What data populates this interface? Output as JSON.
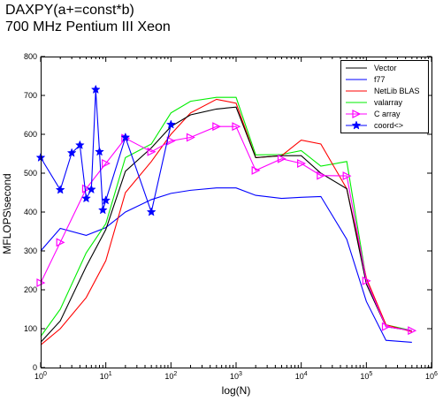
{
  "chart_data": {
    "type": "line",
    "title": "DAXPY(a+=const*b)",
    "subtitle": "700 MHz Pentium III Xeon",
    "xlabel": "log(N)",
    "ylabel": "MFLOPS\\second",
    "xscale": "log",
    "xlim": [
      1,
      1000000
    ],
    "ylim": [
      0,
      800
    ],
    "x_ticks": [
      {
        "value": 1,
        "base": "10",
        "exp": "0"
      },
      {
        "value": 10,
        "base": "10",
        "exp": "1"
      },
      {
        "value": 100,
        "base": "10",
        "exp": "2"
      },
      {
        "value": 1000,
        "base": "10",
        "exp": "3"
      },
      {
        "value": 10000,
        "base": "10",
        "exp": "4"
      },
      {
        "value": 100000,
        "base": "10",
        "exp": "5"
      },
      {
        "value": 1000000,
        "base": "10",
        "exp": "6"
      }
    ],
    "y_ticks": [
      "0",
      "100",
      "200",
      "300",
      "400",
      "500",
      "600",
      "700",
      "800"
    ],
    "grid": false,
    "legend_position": "top-right",
    "series": [
      {
        "name": "Vector",
        "color": "#000000",
        "marker": "none",
        "x": [
          1,
          2,
          5,
          10,
          20,
          50,
          100,
          200,
          500,
          1000,
          2000,
          5000,
          10000,
          20000,
          50000,
          100000,
          200000,
          500000
        ],
        "y": [
          65,
          120,
          260,
          355,
          505,
          565,
          620,
          650,
          665,
          670,
          540,
          545,
          545,
          500,
          460,
          215,
          105,
          95
        ]
      },
      {
        "name": "f77",
        "color": "#0000ff",
        "marker": "none",
        "x": [
          1,
          2,
          5,
          10,
          20,
          50,
          100,
          200,
          500,
          1000,
          2000,
          5000,
          10000,
          20000,
          50000,
          100000,
          200000,
          500000
        ],
        "y": [
          300,
          358,
          340,
          360,
          400,
          432,
          448,
          456,
          462,
          462,
          443,
          435,
          438,
          440,
          330,
          170,
          70,
          65
        ]
      },
      {
        "name": "NetLib BLAS",
        "color": "#ff0000",
        "marker": "none",
        "x": [
          1,
          2,
          5,
          10,
          20,
          50,
          100,
          200,
          500,
          1000,
          2000,
          5000,
          10000,
          20000,
          50000,
          100000,
          200000,
          500000
        ],
        "y": [
          58,
          100,
          180,
          275,
          450,
          530,
          600,
          655,
          690,
          680,
          540,
          545,
          585,
          575,
          460,
          230,
          110,
          92
        ]
      },
      {
        "name": "valarray",
        "color": "#00ee00",
        "marker": "none",
        "x": [
          1,
          2,
          5,
          10,
          20,
          50,
          100,
          200,
          500,
          1000,
          2000,
          5000,
          10000,
          20000,
          50000,
          100000,
          200000,
          500000
        ],
        "y": [
          80,
          150,
          295,
          370,
          540,
          575,
          655,
          685,
          695,
          695,
          547,
          548,
          558,
          518,
          530,
          225,
          110,
          95
        ]
      },
      {
        "name": "C array",
        "color": "#ff00ff",
        "marker": "triangle-right",
        "x": [
          1,
          2,
          5,
          10,
          20,
          50,
          100,
          200,
          500,
          1000,
          2000,
          5000,
          10000,
          20000,
          50000,
          100000,
          200000,
          500000
        ],
        "y": [
          218,
          322,
          460,
          525,
          590,
          555,
          583,
          592,
          620,
          620,
          507,
          537,
          525,
          494,
          493,
          223,
          105,
          95
        ]
      },
      {
        "name": "coord<>",
        "color": "#0000ff",
        "marker": "star",
        "x": [
          1,
          2,
          3,
          4,
          5,
          6,
          7,
          8,
          9,
          10,
          20,
          50,
          100
        ],
        "y": [
          540,
          457,
          552,
          572,
          435,
          458,
          715,
          555,
          405,
          430,
          592,
          400,
          625
        ]
      }
    ]
  }
}
